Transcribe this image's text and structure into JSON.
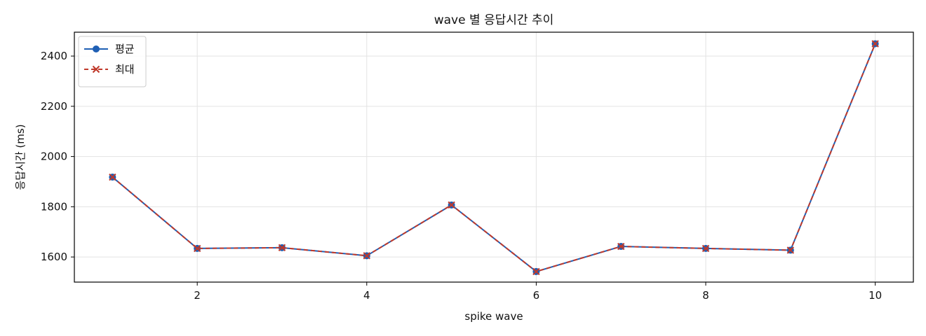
{
  "chart_data": {
    "type": "line",
    "title": "wave 별 응답시간 추이",
    "xlabel": "spike wave",
    "ylabel": "응답시간 (ms)",
    "x": [
      1,
      2,
      3,
      4,
      5,
      6,
      7,
      8,
      9,
      10
    ],
    "xlim": [
      0.55,
      10.45
    ],
    "ylim": [
      1500,
      2495
    ],
    "xticks": [
      2,
      4,
      6,
      8,
      10
    ],
    "yticks": [
      1600,
      1800,
      2000,
      2200,
      2400
    ],
    "grid": true,
    "legend_position": "top-left",
    "series": [
      {
        "name": "평균",
        "values": [
          1918,
          1634,
          1637,
          1605,
          1807,
          1542,
          1642,
          1634,
          1627,
          2449
        ],
        "color": "#1f5fb4",
        "line_style": "solid",
        "marker": "circle"
      },
      {
        "name": "최대",
        "values": [
          1918,
          1634,
          1637,
          1605,
          1807,
          1542,
          1642,
          1634,
          1627,
          2449
        ],
        "color": "#c0392b",
        "line_style": "dashed",
        "marker": "x"
      }
    ]
  }
}
